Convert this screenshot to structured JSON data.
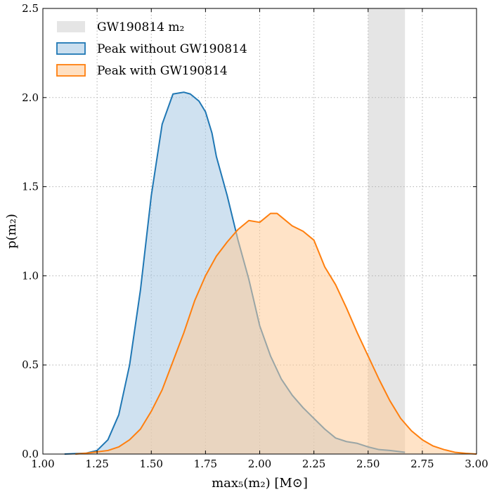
{
  "chart_data": {
    "type": "area",
    "xlabel": "max₅(m₂) [M⊙]",
    "ylabel": "p(m₂)",
    "xlim": [
      1.0,
      3.0
    ],
    "ylim": [
      0.0,
      2.5
    ],
    "xticks": [
      "1.00",
      "1.25",
      "1.50",
      "1.75",
      "2.00",
      "2.25",
      "2.50",
      "2.75",
      "3.00"
    ],
    "yticks": [
      "0.0",
      "0.5",
      "1.0",
      "1.5",
      "2.0",
      "2.5"
    ],
    "grid": true,
    "legend_position": "top-left",
    "band": {
      "name": "GW190814 m₂",
      "x_range": [
        2.5,
        2.67
      ],
      "color": "#d3d3d3"
    },
    "series": [
      {
        "name": "Peak without GW190814",
        "color": "#1f77b4",
        "fill": "#a8c9e4",
        "x": [
          1.1,
          1.2,
          1.25,
          1.3,
          1.35,
          1.4,
          1.45,
          1.5,
          1.55,
          1.6,
          1.65,
          1.68,
          1.72,
          1.75,
          1.78,
          1.8,
          1.85,
          1.9,
          1.95,
          2.0,
          2.05,
          2.1,
          2.15,
          2.2,
          2.25,
          2.3,
          2.35,
          2.4,
          2.45,
          2.5,
          2.55,
          2.6,
          2.67
        ],
        "y": [
          0.0,
          0.005,
          0.02,
          0.08,
          0.22,
          0.5,
          0.92,
          1.45,
          1.85,
          2.02,
          2.03,
          2.02,
          1.98,
          1.92,
          1.8,
          1.67,
          1.45,
          1.2,
          0.98,
          0.72,
          0.55,
          0.42,
          0.33,
          0.26,
          0.2,
          0.14,
          0.09,
          0.07,
          0.06,
          0.04,
          0.025,
          0.02,
          0.01
        ]
      },
      {
        "name": "Peak with GW190814",
        "color": "#ff7f0e",
        "fill": "#ffcc99",
        "x": [
          1.15,
          1.2,
          1.3,
          1.35,
          1.4,
          1.45,
          1.5,
          1.55,
          1.6,
          1.65,
          1.7,
          1.75,
          1.8,
          1.85,
          1.9,
          1.95,
          2.0,
          2.05,
          2.08,
          2.1,
          2.15,
          2.2,
          2.25,
          2.3,
          2.35,
          2.4,
          2.45,
          2.5,
          2.55,
          2.6,
          2.65,
          2.7,
          2.75,
          2.8,
          2.85,
          2.9,
          2.95,
          3.0
        ],
        "y": [
          0.0,
          0.005,
          0.02,
          0.04,
          0.08,
          0.14,
          0.24,
          0.36,
          0.52,
          0.68,
          0.86,
          1.0,
          1.11,
          1.19,
          1.26,
          1.31,
          1.3,
          1.35,
          1.35,
          1.33,
          1.28,
          1.25,
          1.2,
          1.05,
          0.95,
          0.82,
          0.68,
          0.55,
          0.42,
          0.3,
          0.2,
          0.13,
          0.08,
          0.045,
          0.025,
          0.01,
          0.004,
          0.0
        ]
      }
    ]
  }
}
